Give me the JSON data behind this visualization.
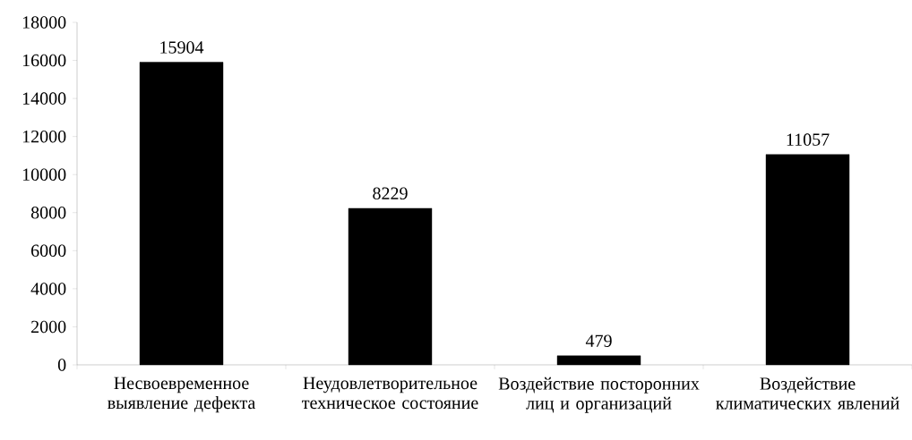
{
  "chart_data": {
    "type": "bar",
    "categories": [
      "Несвоевременное выявление дефекта",
      "Неудовлетворительное техническое состояние",
      "Воздействие посторонних лиц и организаций",
      "Воздействие климатических явлений"
    ],
    "values": [
      15904,
      8229,
      479,
      11057
    ],
    "color": "#000000",
    "ylim": [
      0,
      18000
    ],
    "yticks": [
      0,
      2000,
      4000,
      6000,
      8000,
      10000,
      12000,
      14000,
      16000,
      18000
    ],
    "data_labels": true,
    "grid": false
  }
}
